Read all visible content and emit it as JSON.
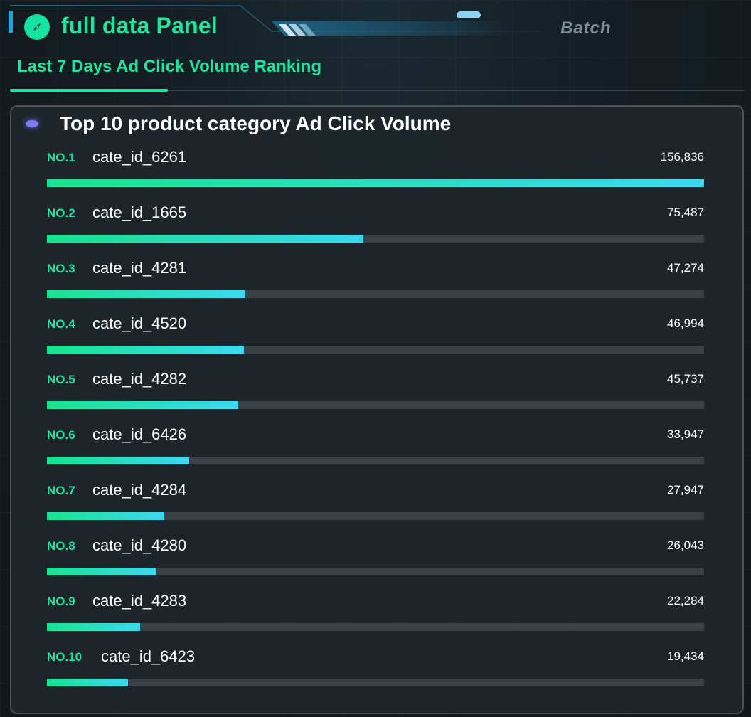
{
  "header": {
    "title": "full data Panel",
    "batch_tab": "Batch",
    "accent_color": "#22e39c",
    "icon": "compass-icon"
  },
  "subtabs": {
    "active_label": "Last 7 Days Ad Click Volume Ranking"
  },
  "panel": {
    "heading": "Top 10 product category Ad Click Volume",
    "max_value": 156836,
    "items": [
      {
        "rank": "NO.1",
        "name": "cate_id_6261",
        "value": 156836,
        "value_label": "156,836"
      },
      {
        "rank": "NO.2",
        "name": "cate_id_1665",
        "value": 75487,
        "value_label": "75,487"
      },
      {
        "rank": "NO.3",
        "name": "cate_id_4281",
        "value": 47274,
        "value_label": "47,274"
      },
      {
        "rank": "NO.4",
        "name": "cate_id_4520",
        "value": 46994,
        "value_label": "46,994"
      },
      {
        "rank": "NO.5",
        "name": "cate_id_4282",
        "value": 45737,
        "value_label": "45,737"
      },
      {
        "rank": "NO.6",
        "name": "cate_id_6426",
        "value": 33947,
        "value_label": "33,947"
      },
      {
        "rank": "NO.7",
        "name": "cate_id_4284",
        "value": 27947,
        "value_label": "27,947"
      },
      {
        "rank": "NO.8",
        "name": "cate_id_4280",
        "value": 26043,
        "value_label": "26,043"
      },
      {
        "rank": "NO.9",
        "name": "cate_id_4283",
        "value": 22284,
        "value_label": "22,284"
      },
      {
        "rank": "NO.10",
        "name": "cate_id_6423",
        "value": 19434,
        "value_label": "19,434"
      }
    ],
    "bar_gradient": [
      "#18e38f",
      "#3dd8f0"
    ]
  }
}
